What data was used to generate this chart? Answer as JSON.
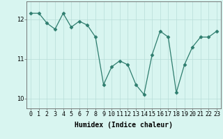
{
  "x": [
    0,
    1,
    2,
    3,
    4,
    5,
    6,
    7,
    8,
    9,
    10,
    11,
    12,
    13,
    14,
    15,
    16,
    17,
    18,
    19,
    20,
    21,
    22,
    23
  ],
  "y": [
    12.15,
    12.15,
    11.9,
    11.75,
    12.15,
    11.8,
    11.95,
    11.85,
    11.55,
    10.35,
    10.8,
    10.95,
    10.85,
    10.35,
    10.1,
    11.1,
    11.7,
    11.55,
    10.15,
    10.85,
    11.3,
    11.55,
    11.55,
    11.7
  ],
  "line_color": "#2e7d6e",
  "marker": "D",
  "marker_size": 2.5,
  "bg_color": "#d8f5f0",
  "grid_color": "#b8ddd8",
  "xlabel": "Humidex (Indice chaleur)",
  "ylim": [
    9.75,
    12.45
  ],
  "yticks": [
    10,
    11,
    12
  ],
  "xtick_labels": [
    "0",
    "1",
    "2",
    "3",
    "4",
    "5",
    "6",
    "7",
    "8",
    "9",
    "10",
    "11",
    "12",
    "13",
    "14",
    "15",
    "16",
    "17",
    "18",
    "19",
    "20",
    "21",
    "22",
    "23"
  ],
  "axis_fontsize": 7,
  "tick_fontsize": 6
}
